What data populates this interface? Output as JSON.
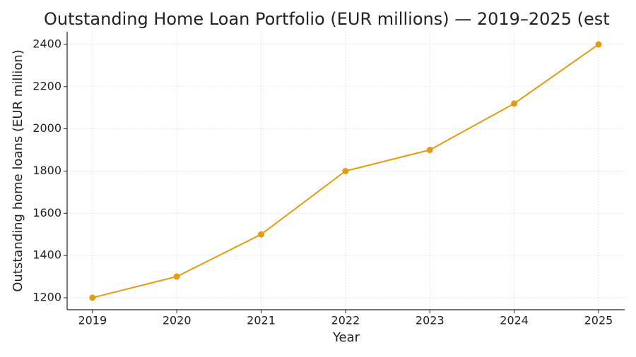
{
  "chart_data": {
    "type": "line",
    "title": "Outstanding Home Loan Portfolio (EUR millions) — 2019–2025 (est",
    "x_label": "Year",
    "y_label": "Outstanding home loans (EUR million)",
    "x": [
      2019,
      2020,
      2021,
      2022,
      2023,
      2024,
      2025
    ],
    "series": [
      {
        "name": "Outstanding home loans",
        "color": "#e39c12",
        "values": [
          1200,
          1300,
          1500,
          1800,
          1900,
          2120,
          2400
        ]
      }
    ],
    "xlim": [
      2018.7,
      2025.31
    ],
    "xticks": [
      2019,
      2020,
      2021,
      2022,
      2023,
      2024,
      2025
    ],
    "ylim": [
      1143,
      2460
    ],
    "yticks": [
      1200,
      1400,
      1600,
      1800,
      2000,
      2200,
      2400
    ],
    "grid": true
  }
}
